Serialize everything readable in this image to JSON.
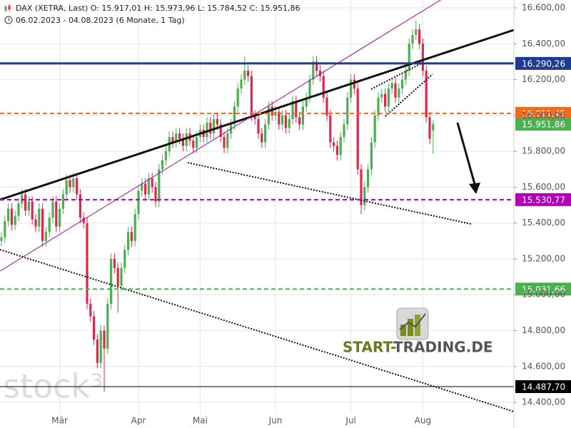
{
  "chart_data": {
    "type": "candlestick",
    "header": "DAX (XETRA, Last)  O: 15.917,01  H: 15.973,96  L: 15.784,52  C: 15.951,86",
    "subtitle": "06.02.2023 - 04.08.2023   (6 Monate, 1 Tag)",
    "watermark": "stock³",
    "logo_start": "START-",
    "logo_end": "TRADING.DE",
    "up_color": "#4caf50",
    "down_color": "#e0264a",
    "categories": [
      null,
      null,
      null,
      null,
      null,
      null,
      null,
      null,
      null,
      null,
      null,
      null,
      null,
      null,
      null,
      null,
      null,
      "Mär",
      null,
      null,
      null,
      null,
      null,
      null,
      null,
      null,
      null,
      null,
      null,
      null,
      null,
      null,
      null,
      null,
      null,
      null,
      null,
      null,
      null,
      null,
      "Apr",
      null,
      null,
      null,
      null,
      null,
      null,
      null,
      null,
      null,
      null,
      null,
      null,
      null,
      null,
      null,
      null,
      null,
      "Mai",
      null,
      null,
      null,
      null,
      null,
      null,
      null,
      null,
      null,
      null,
      null,
      null,
      null,
      null,
      null,
      null,
      null,
      null,
      null,
      null,
      null,
      "Jun",
      null,
      null,
      null,
      null,
      null,
      null,
      null,
      null,
      null,
      null,
      null,
      null,
      null,
      null,
      null,
      null,
      null,
      null,
      null,
      null,
      null,
      "Jul",
      null,
      null,
      null,
      null,
      null,
      null,
      null,
      null,
      null,
      null,
      null,
      null,
      null,
      null,
      null,
      null,
      null,
      null,
      null,
      null,
      "Aug",
      null,
      null,
      null
    ],
    "open": [
      15300,
      15320,
      15410,
      15480,
      15390,
      15440,
      15510,
      15560,
      15470,
      15520,
      15420,
      15380,
      15480,
      15300,
      15350,
      15430,
      15520,
      15380,
      15480,
      15560,
      15640,
      15600,
      15650,
      15560,
      15430,
      15400,
      14950,
      14880,
      14750,
      14620,
      14800,
      14700,
      14950,
      15200,
      15150,
      15050,
      15150,
      15250,
      15350,
      15300,
      15450,
      15580,
      15620,
      15560,
      15650,
      15600,
      15520,
      15700,
      15750,
      15800,
      15880,
      15850,
      15900,
      15870,
      15830,
      15900,
      15860,
      15820,
      15880,
      15920,
      15880,
      15960,
      15900,
      15980,
      15950,
      15880,
      15820,
      15900,
      15950,
      16050,
      16150,
      16200,
      16250,
      16220,
      16000,
      15980,
      15900,
      15850,
      15950,
      16050,
      16000,
      16020,
      15950,
      16000,
      15930,
      15980,
      16080,
      15990,
      15950,
      16050,
      16100,
      16200,
      16300,
      16250,
      16220,
      16100,
      16000,
      15850,
      15830,
      15780,
      15880,
      15950,
      16100,
      16200,
      16150,
      15700,
      15500,
      15600,
      15700,
      15850,
      16000,
      16100,
      16120,
      16050,
      16150,
      16180,
      16100,
      16150,
      16200,
      16250,
      16400,
      16450,
      16480,
      16400,
      16250,
      15990,
      15917.01
    ],
    "high": [
      15350,
      15440,
      15510,
      15510,
      15470,
      15540,
      15590,
      15590,
      15550,
      15550,
      15450,
      15510,
      15510,
      15380,
      15460,
      15550,
      15550,
      15510,
      15590,
      15670,
      15670,
      15680,
      15680,
      15590,
      15460,
      15430,
      14980,
      14910,
      14780,
      14830,
      14830,
      14980,
      15230,
      15230,
      15180,
      15180,
      15280,
      15380,
      15380,
      15480,
      15610,
      15650,
      15650,
      15680,
      15680,
      15630,
      15730,
      15780,
      15830,
      15910,
      15910,
      15930,
      15930,
      15900,
      15930,
      15930,
      15890,
      15910,
      15950,
      15950,
      15990,
      15990,
      16010,
      16010,
      15980,
      15910,
      15930,
      15980,
      16080,
      16180,
      16230,
      16330,
      16280,
      16250,
      16030,
      16010,
      15930,
      15980,
      16080,
      16080,
      16050,
      16050,
      16030,
      16030,
      16010,
      16110,
      16110,
      16020,
      16080,
      16130,
      16230,
      16330,
      16330,
      16280,
      16250,
      16130,
      16030,
      15880,
      15860,
      15910,
      15980,
      16130,
      16230,
      16230,
      16180,
      15730,
      15630,
      15730,
      15880,
      16030,
      16130,
      16150,
      16150,
      16180,
      16210,
      16210,
      16180,
      16230,
      16280,
      16430,
      16480,
      16530,
      16510,
      16430,
      16280,
      16020,
      15973.96
    ],
    "low": [
      15270,
      15290,
      15380,
      15360,
      15360,
      15410,
      15480,
      15440,
      15440,
      15390,
      15350,
      15350,
      15270,
      15270,
      15320,
      15400,
      15350,
      15350,
      15450,
      15530,
      15570,
      15570,
      15530,
      15400,
      15370,
      14920,
      14850,
      14720,
      14590,
      14590,
      14460,
      14670,
      14920,
      15120,
      14900,
      15020,
      15120,
      15220,
      15270,
      15270,
      15420,
      15550,
      15530,
      15530,
      15570,
      15490,
      15490,
      15670,
      15720,
      15770,
      15820,
      15820,
      15840,
      15800,
      15800,
      15830,
      15790,
      15790,
      15850,
      15850,
      15850,
      15870,
      15870,
      15920,
      15850,
      15790,
      15790,
      15870,
      15920,
      16020,
      16120,
      16170,
      16190,
      15970,
      15950,
      15870,
      15820,
      15820,
      15920,
      15970,
      15970,
      15920,
      15920,
      15900,
      15900,
      15950,
      15960,
      15920,
      15920,
      16020,
      16070,
      16170,
      16220,
      16190,
      16070,
      15970,
      15820,
      15800,
      15750,
      15750,
      15850,
      15920,
      16070,
      16120,
      15670,
      15450,
      15470,
      15570,
      15670,
      15820,
      15970,
      16070,
      16020,
      16020,
      16120,
      16070,
      16070,
      16120,
      16170,
      16220,
      16370,
      16420,
      16370,
      16220,
      15960,
      15840,
      15784.52
    ],
    "close": [
      15320,
      15410,
      15480,
      15390,
      15440,
      15510,
      15560,
      15470,
      15520,
      15420,
      15380,
      15480,
      15300,
      15350,
      15430,
      15520,
      15380,
      15480,
      15560,
      15640,
      15600,
      15650,
      15560,
      15430,
      15400,
      14950,
      14880,
      14750,
      14620,
      14800,
      14700,
      14950,
      15200,
      15150,
      15050,
      15150,
      15250,
      15350,
      15300,
      15450,
      15580,
      15620,
      15560,
      15650,
      15600,
      15520,
      15700,
      15750,
      15800,
      15880,
      15850,
      15900,
      15870,
      15830,
      15900,
      15860,
      15820,
      15880,
      15920,
      15880,
      15960,
      15900,
      15980,
      15950,
      15880,
      15820,
      15900,
      15950,
      16050,
      16150,
      16200,
      16250,
      16220,
      16000,
      15980,
      15900,
      15850,
      15950,
      16050,
      16000,
      16020,
      15950,
      16000,
      15930,
      15980,
      16080,
      15990,
      15950,
      16050,
      16100,
      16200,
      16300,
      16250,
      16220,
      16100,
      16000,
      15850,
      15830,
      15780,
      15880,
      15950,
      16100,
      16200,
      16150,
      15700,
      15500,
      15600,
      15700,
      15850,
      16000,
      16100,
      16120,
      16050,
      16150,
      16180,
      16100,
      16150,
      16200,
      16250,
      16400,
      16450,
      16480,
      16400,
      16250,
      15990,
      15870,
      15951.86
    ],
    "ylim": [
      14257,
      16644
    ],
    "yticks": [
      {
        "value": 14400,
        "label": "14.400,00"
      },
      {
        "value": 14600,
        "label": "14.600,00"
      },
      {
        "value": 14800,
        "label": "14.800,00"
      },
      {
        "value": 15000,
        "label": "15.000,00"
      },
      {
        "value": 15200,
        "label": "15.200,00"
      },
      {
        "value": 15400,
        "label": "15.400,00"
      },
      {
        "value": 15600,
        "label": "15.600,00"
      },
      {
        "value": 15800,
        "label": "15.800,00"
      },
      {
        "value": 16000,
        "label": "16.000,00"
      },
      {
        "value": 16200,
        "label": "16.200,00"
      },
      {
        "value": 16400,
        "label": "16.400,00"
      },
      {
        "value": 16600,
        "label": "16.600,00"
      }
    ],
    "grid": true,
    "levels": [
      {
        "value": 16290.26,
        "label": "16.290,26",
        "color": "#1f3a93",
        "style": "solid"
      },
      {
        "value": 16011.45,
        "label": "16.011,45",
        "color": "#f26b1d",
        "style": "dashed"
      },
      {
        "value": 15951.86,
        "label": "15.951,86",
        "color": "#4caf50",
        "style": "none"
      },
      {
        "value": 15530.77,
        "label": "15.530,77",
        "color": "#b000b5",
        "style": "dashed"
      },
      {
        "value": 15031.66,
        "label": "15.031,66",
        "color": "#4caf50",
        "style": "dashed"
      },
      {
        "value": 14487.7,
        "label": "14.487,70",
        "color": "#000000",
        "style": "thin"
      }
    ]
  }
}
